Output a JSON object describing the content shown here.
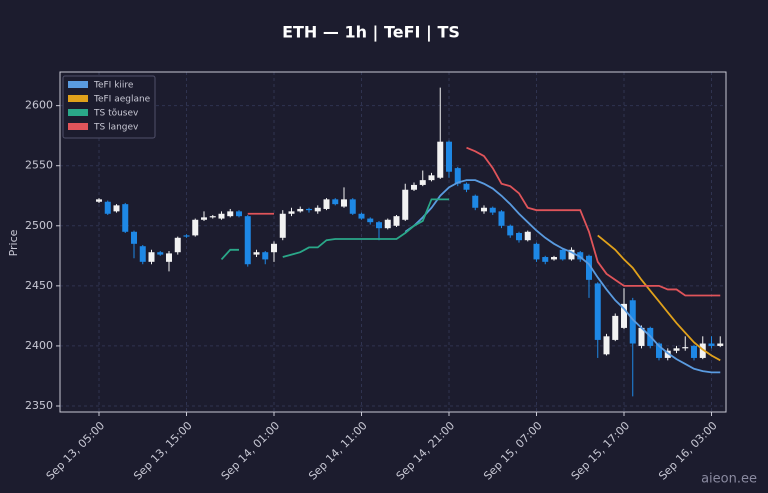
{
  "chart_data": {
    "type": "candlestick",
    "title": "ETH — 1h  |  TeFI  |  TS",
    "y_label": "Price",
    "watermark": "aieon.ee",
    "categories": [
      "Sep 13, 05:00",
      null,
      null,
      null,
      null,
      null,
      null,
      null,
      null,
      null,
      "Sep 13, 15:00",
      null,
      null,
      null,
      null,
      null,
      null,
      null,
      null,
      null,
      "Sep 14, 01:00",
      null,
      null,
      null,
      null,
      null,
      null,
      null,
      null,
      null,
      "Sep 14, 11:00",
      null,
      null,
      null,
      null,
      null,
      null,
      null,
      null,
      null,
      "Sep 14, 21:00",
      null,
      null,
      null,
      null,
      null,
      null,
      null,
      null,
      null,
      "Sep 15, 07:00",
      null,
      null,
      null,
      null,
      null,
      null,
      null,
      null,
      null,
      "Sep 15, 17:00",
      null,
      null,
      null,
      null,
      null,
      null,
      null,
      null,
      null,
      "Sep 16, 03:00",
      null
    ],
    "open": [
      2520,
      2520,
      2512,
      2518,
      2495,
      2483,
      2470,
      2478,
      2470,
      2478,
      2492,
      2492,
      2505,
      2507,
      2506,
      2508,
      2512,
      2508,
      2476,
      2478,
      2478,
      2490,
      2510,
      2512,
      2514,
      2512,
      2514,
      2522,
      2516,
      2522,
      2510,
      2506,
      2503,
      2498,
      2500,
      2505,
      2530,
      2534,
      2538,
      2540,
      2570,
      2548,
      2535,
      2525,
      2512,
      2515,
      2512,
      2500,
      2494,
      2488,
      2485,
      2474,
      2472,
      2480,
      2472,
      2478,
      2475,
      2452,
      2393,
      2405,
      2415,
      2438,
      2400,
      2415,
      2402,
      2390,
      2396,
      2398,
      2400,
      2390,
      2402,
      2400
    ],
    "high": [
      2523,
      2521,
      2518,
      2519,
      2496,
      2484,
      2480,
      2479,
      2479,
      2491,
      2493,
      2506,
      2512,
      2509,
      2512,
      2514,
      2513,
      2509,
      2480,
      2479,
      2487,
      2513,
      2515,
      2516,
      2515,
      2517,
      2523,
      2523,
      2532,
      2523,
      2511,
      2507,
      2504,
      2506,
      2509,
      2535,
      2536,
      2546,
      2544,
      2615,
      2571,
      2549,
      2536,
      2526,
      2517,
      2516,
      2513,
      2501,
      2495,
      2496,
      2486,
      2475,
      2475,
      2481,
      2482,
      2479,
      2476,
      2453,
      2410,
      2427,
      2448,
      2440,
      2417,
      2416,
      2403,
      2398,
      2400,
      2408,
      2401,
      2408,
      2408,
      2408
    ],
    "low": [
      2519,
      2509,
      2511,
      2494,
      2473,
      2468,
      2468,
      2475,
      2462,
      2476,
      2490,
      2491,
      2504,
      2506,
      2505,
      2507,
      2507,
      2466,
      2474,
      2468,
      2470,
      2488,
      2508,
      2511,
      2511,
      2510,
      2513,
      2517,
      2515,
      2509,
      2505,
      2501,
      2488,
      2497,
      2499,
      2504,
      2529,
      2533,
      2537,
      2539,
      2540,
      2533,
      2528,
      2513,
      2510,
      2509,
      2498,
      2490,
      2486,
      2487,
      2470,
      2468,
      2471,
      2471,
      2471,
      2470,
      2440,
      2390,
      2392,
      2404,
      2414,
      2358,
      2398,
      2398,
      2388,
      2388,
      2394,
      2396,
      2388,
      2389,
      2398,
      2399
    ],
    "close": [
      2522,
      2510,
      2517,
      2495,
      2485,
      2470,
      2478,
      2476,
      2477,
      2490,
      2491,
      2505,
      2507,
      2508,
      2510,
      2512,
      2508,
      2468,
      2478,
      2472,
      2485,
      2510,
      2512,
      2514,
      2513,
      2515,
      2522,
      2518,
      2522,
      2510,
      2506,
      2503,
      2498,
      2505,
      2508,
      2530,
      2534,
      2538,
      2542,
      2570,
      2545,
      2535,
      2530,
      2515,
      2515,
      2511,
      2500,
      2492,
      2488,
      2495,
      2472,
      2470,
      2474,
      2472,
      2480,
      2472,
      2455,
      2405,
      2408,
      2425,
      2435,
      2402,
      2415,
      2400,
      2390,
      2396,
      2398,
      2399,
      2390,
      2402,
      2400,
      2402
    ],
    "up_color": "#f2f2f2",
    "down_color": "#1e88e5",
    "series": [
      {
        "name": "TeFI kiire",
        "color": "#5a9be0",
        "values": [
          null,
          null,
          null,
          null,
          null,
          null,
          null,
          null,
          null,
          null,
          null,
          null,
          null,
          null,
          null,
          null,
          null,
          null,
          null,
          null,
          null,
          null,
          null,
          null,
          null,
          null,
          null,
          null,
          null,
          null,
          null,
          null,
          null,
          null,
          null,
          2495,
          2500,
          2507,
          2515,
          2525,
          2532,
          2536,
          2538,
          2538,
          2535,
          2531,
          2525,
          2518,
          2510,
          2503,
          2496,
          2490,
          2485,
          2481,
          2478,
          2474,
          2468,
          2457,
          2447,
          2438,
          2431,
          2422,
          2415,
          2408,
          2400,
          2394,
          2389,
          2385,
          2381,
          2379,
          2378,
          2378
        ]
      },
      {
        "name": "TeFI aeglane",
        "color": "#e0a11b",
        "values": [
          null,
          null,
          null,
          null,
          null,
          null,
          null,
          null,
          null,
          null,
          null,
          null,
          null,
          null,
          null,
          null,
          null,
          null,
          null,
          null,
          null,
          null,
          null,
          null,
          null,
          null,
          null,
          null,
          null,
          null,
          null,
          null,
          null,
          null,
          null,
          null,
          null,
          null,
          null,
          null,
          null,
          null,
          null,
          null,
          null,
          null,
          null,
          null,
          null,
          null,
          null,
          null,
          null,
          null,
          null,
          null,
          null,
          2492,
          2486,
          2480,
          2472,
          2465,
          2455,
          2446,
          2437,
          2428,
          2419,
          2411,
          2403,
          2397,
          2392,
          2388
        ]
      },
      {
        "name": "TS tõusev",
        "color": "#2aa889",
        "values": [
          null,
          null,
          null,
          null,
          null,
          null,
          null,
          null,
          null,
          null,
          null,
          null,
          null,
          null,
          2472,
          2480,
          2480,
          null,
          null,
          null,
          null,
          2474,
          2476,
          2478,
          2482,
          2482,
          2488,
          2489,
          2489,
          2489,
          2489,
          2489,
          2489,
          2489,
          2489,
          2494,
          2500,
          2504,
          2522,
          2522,
          2522,
          null,
          null,
          null,
          null,
          null,
          null,
          null,
          null,
          null,
          null,
          null,
          null,
          null,
          null,
          null,
          null,
          null,
          null,
          null,
          null,
          null,
          null,
          null,
          null,
          null,
          null,
          null,
          null,
          null,
          null,
          null
        ]
      },
      {
        "name": "TS langev",
        "color": "#e0545a",
        "values": [
          null,
          null,
          null,
          null,
          null,
          null,
          null,
          null,
          null,
          null,
          null,
          null,
          null,
          null,
          null,
          null,
          null,
          2510,
          2510,
          2510,
          2510,
          null,
          null,
          null,
          null,
          null,
          null,
          null,
          null,
          null,
          null,
          null,
          null,
          null,
          null,
          null,
          null,
          null,
          null,
          null,
          null,
          null,
          2565,
          2562,
          2558,
          2548,
          2535,
          2533,
          2527,
          2515,
          2513,
          2513,
          2513,
          2513,
          2513,
          2513,
          2495,
          2470,
          2460,
          2455,
          2450,
          2450,
          2450,
          2450,
          2450,
          2447,
          2447,
          2442,
          2442,
          2442,
          2442,
          2442
        ]
      }
    ],
    "ylim": [
      2345,
      2628
    ],
    "yticks": [
      2350,
      2400,
      2450,
      2500,
      2550,
      2600
    ],
    "grid": true,
    "legend": "upper left"
  }
}
